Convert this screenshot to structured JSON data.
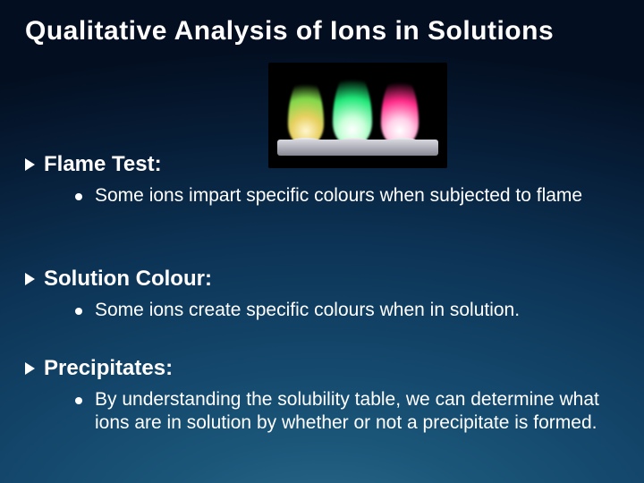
{
  "title": "Qualitative Analysis of Ions in Solutions",
  "flame_image": {
    "flames": [
      {
        "color_inner": "#fff6d0",
        "color_mid": "#e8d060",
        "color_outer": "#7fd84a"
      },
      {
        "color_inner": "#ffffff",
        "color_mid": "#c8ffd8",
        "color_outer": "#20e878"
      },
      {
        "color_inner": "#ffffff",
        "color_mid": "#ffd0e8",
        "color_outer": "#ff2a88"
      }
    ],
    "background": "#000000"
  },
  "sections": [
    {
      "heading": "Flame Test:",
      "sub": "Some ions impart specific colours when subjected to flame"
    },
    {
      "heading": "Solution Colour:",
      "sub": "Some ions create specific colours when in solution."
    },
    {
      "heading": "Precipitates:",
      "sub": "By understanding the solubility table, we can determine what ions are in solution by whether or not a precipitate is formed."
    }
  ],
  "colors": {
    "title_color": "#ffffff",
    "text_color": "#ffffff",
    "bg_gradient_outer": "#030e20",
    "bg_gradient_inner": "#2a6a8a"
  },
  "typography": {
    "title_fontsize": 30,
    "heading_fontsize": 24,
    "body_fontsize": 21,
    "font_family": "Comic Sans MS"
  }
}
